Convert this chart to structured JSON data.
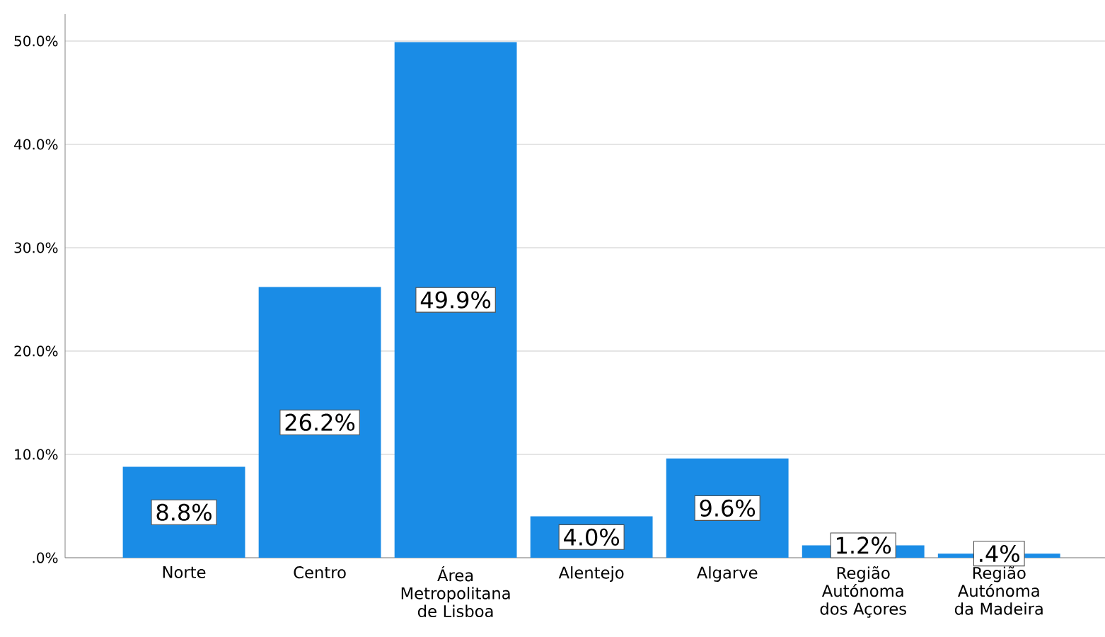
{
  "chart_data": {
    "type": "bar",
    "categories": [
      "Norte",
      "Centro",
      "Área Metropolitana de Lisboa",
      "Alentejo",
      "Algarve",
      "Região Autónoma dos Açores",
      "Região Autónoma da Madeira"
    ],
    "values": [
      8.8,
      26.2,
      49.9,
      4.0,
      9.6,
      1.2,
      0.4
    ],
    "value_labels": [
      "8.8%",
      "26.2%",
      "49.9%",
      "4.0%",
      "9.6%",
      "1.2%",
      ".4%"
    ],
    "color": "#1a8ce6",
    "ylim": [
      0,
      52.6
    ],
    "yticks": [
      {
        "value": 0,
        "label": ".0%"
      },
      {
        "value": 10,
        "label": "10.0%"
      },
      {
        "value": 20,
        "label": "20.0%"
      },
      {
        "value": 30,
        "label": "30.0%"
      },
      {
        "value": 40,
        "label": "40.0%"
      },
      {
        "value": 50,
        "label": "50.0%"
      }
    ],
    "grid": "y"
  }
}
